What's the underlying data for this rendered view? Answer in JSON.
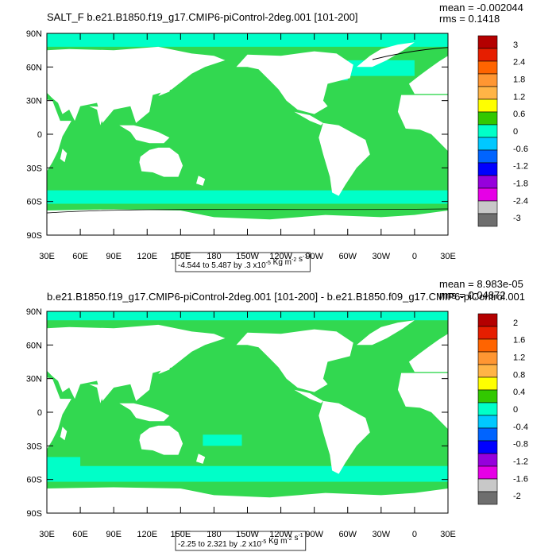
{
  "panels": [
    {
      "title": "SALT_F b.e21.B1850.f19_g17.CMIP6-piControl-2deg.001 [101-200]",
      "mean_label": "mean = -0.002044",
      "rms_label": "rms = 0.1418",
      "range_label": "-4.544 to 5.487 by .3 x10",
      "range_exp": "-5",
      "range_unit": " Kg m",
      "range_unit_exp": "-2",
      "range_tail": " s",
      "range_tail_exp": "-1",
      "legend": {
        "labels": [
          "3",
          "2.4",
          "1.8",
          "1.2",
          "0.6",
          "0",
          "-0.6",
          "-1.2",
          "-1.8",
          "-2.4",
          "-3"
        ],
        "colors": [
          "#b40000",
          "#e61e00",
          "#ff6400",
          "#ff9632",
          "#ffb446",
          "#ffff00",
          "#32c800",
          "#00ffc8",
          "#00c8ff",
          "#0064ff",
          "#0000ff",
          "#9600dc",
          "#e600e6",
          "#c8c8c8",
          "#6e6e6e"
        ]
      }
    },
    {
      "title": "b.e21.B1850.f19_g17.CMIP6-piControl-2deg.001 [101-200] - b.e21.B1850.f09_g17.CMIP6-piControl.001",
      "mean_label": "mean = 8.983e-05",
      "rms_label": "rms = 0.04872",
      "range_label": "-2.25 to 2.321 by .2 x10",
      "range_exp": "-5",
      "range_unit": " Kg m",
      "range_unit_exp": "-2",
      "range_tail": " s",
      "range_tail_exp": "-1",
      "legend": {
        "labels": [
          "2",
          "1.6",
          "1.2",
          "0.8",
          "0.4",
          "0",
          "-0.4",
          "-0.8",
          "-1.2",
          "-1.6",
          "-2"
        ],
        "colors": [
          "#b40000",
          "#e61e00",
          "#ff6400",
          "#ff9632",
          "#ffb446",
          "#ffff00",
          "#32c800",
          "#00ffc8",
          "#00c8ff",
          "#0064ff",
          "#0000ff",
          "#9600dc",
          "#e600e6",
          "#c8c8c8",
          "#6e6e6e"
        ]
      }
    }
  ],
  "lat_ticks": [
    "90N",
    "60N",
    "30N",
    "0",
    "30S",
    "60S",
    "90S"
  ],
  "lon_ticks": [
    "30E",
    "60E",
    "90E",
    "120E",
    "150E",
    "180",
    "150W",
    "120W",
    "90W",
    "60W",
    "30W",
    "0",
    "30E"
  ],
  "colors": {
    "ocean": "#32d850",
    "near_zero": "#00ffc8",
    "land": "#ffffff"
  }
}
